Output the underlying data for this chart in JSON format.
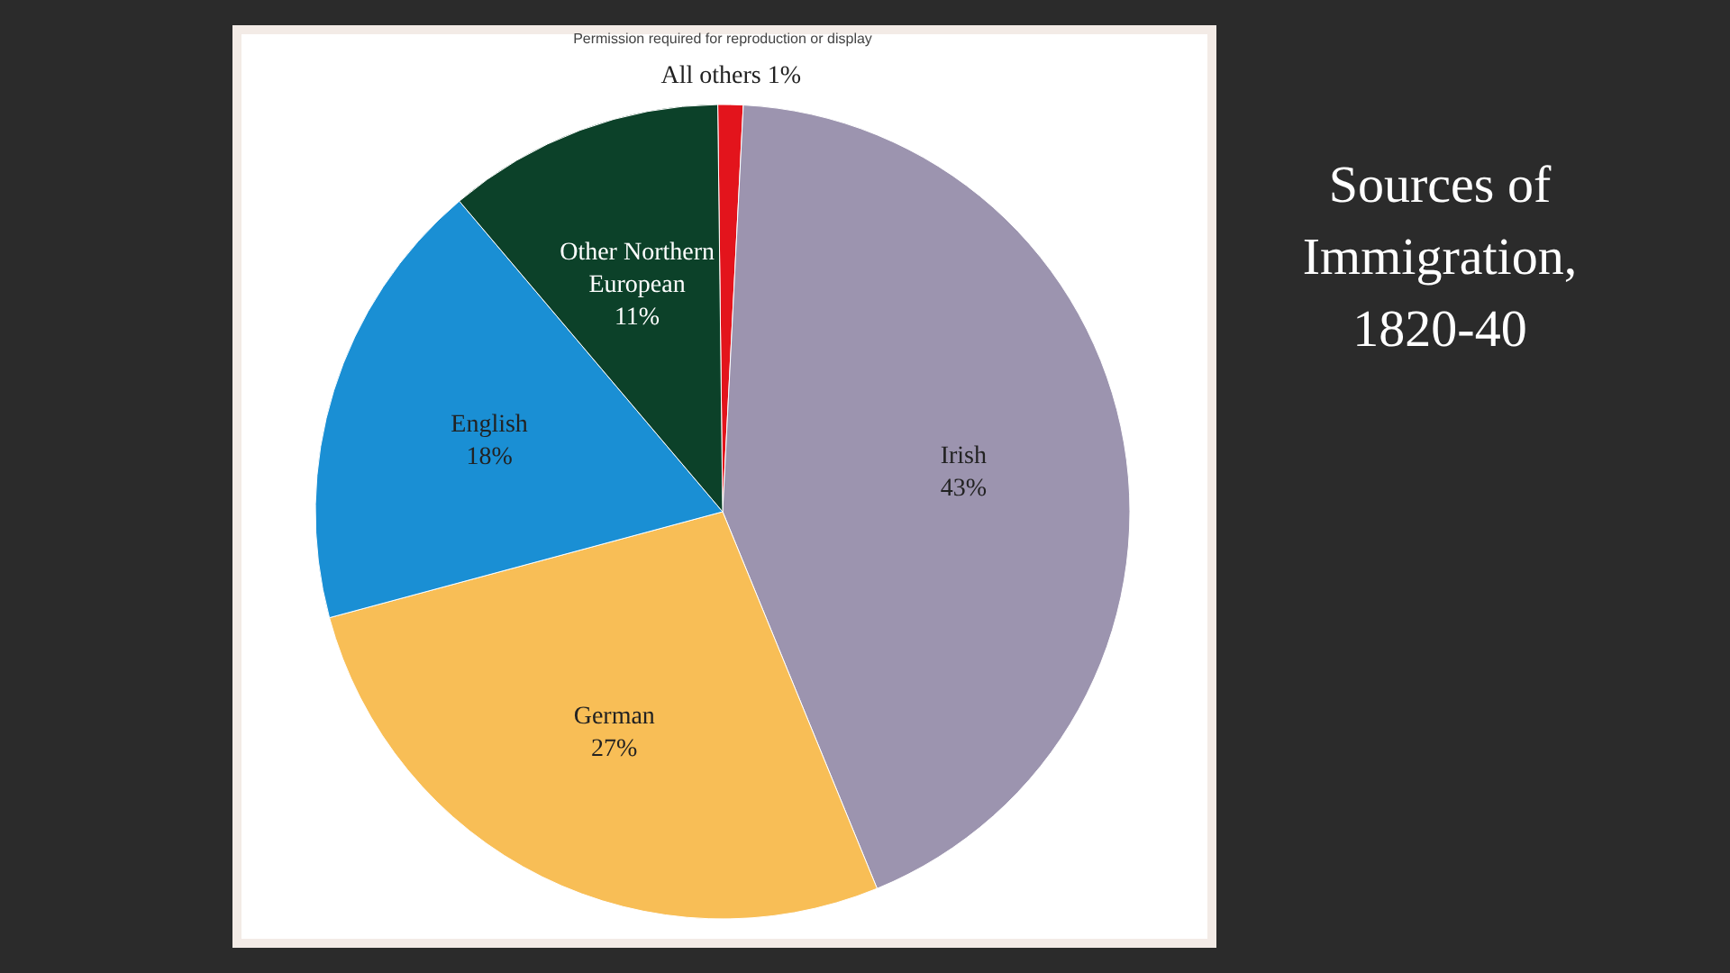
{
  "chart_data": {
    "type": "pie",
    "title": "Sources of Immigration, 1820-40",
    "categories": [
      "All others",
      "Irish",
      "German",
      "English",
      "Other Northern European"
    ],
    "values": [
      1,
      43,
      27,
      18,
      11
    ],
    "colors": [
      "#e3141c",
      "#9c94af",
      "#f8be56",
      "#1a8fd4",
      "#0c4129"
    ],
    "value_labels": [
      "1%",
      "43%",
      "27%",
      "18%",
      "11%"
    ],
    "annotations": [
      "Permission required for reproduction or display"
    ]
  }
}
